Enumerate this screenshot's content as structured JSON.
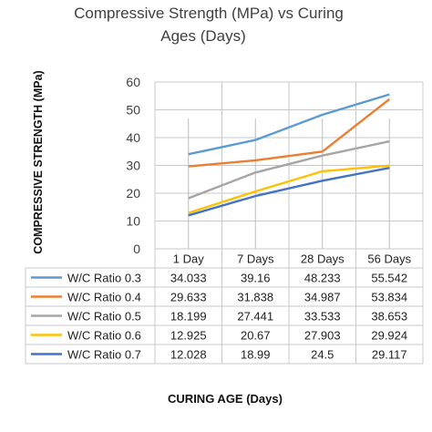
{
  "chart_data": {
    "type": "line",
    "title": "Compressive  Strength (MPa) vs Curing Ages (Days)",
    "title_lines": [
      "Compressive  Strength (MPa) vs Curing",
      "Ages (Days)"
    ],
    "xlabel": "CURING AGE (Days)",
    "ylabel": "COMPRESSIVE STRENGTH (MPa)",
    "categories": [
      "1 Day",
      "7 Days",
      "28 Days",
      "56 Days"
    ],
    "ylim": [
      0,
      60
    ],
    "yticks": [
      0,
      10,
      20,
      30,
      40,
      50,
      60
    ],
    "yticks_labels": [
      "0",
      "10",
      "20",
      "30",
      "40",
      "50",
      "60"
    ],
    "grid": true,
    "legend": "data-table",
    "series": [
      {
        "name": "W/C Ratio 0.3",
        "color": "#5B9BD5",
        "values": [
          34.033,
          39.16,
          48.233,
          55.542
        ],
        "labels": [
          "34.033",
          "39.16",
          "48.233",
          "55.542"
        ]
      },
      {
        "name": "W/C Ratio 0.4",
        "color": "#ED7D31",
        "values": [
          29.633,
          31.838,
          34.987,
          53.834
        ],
        "labels": [
          "29.633",
          "31.838",
          "34.987",
          "53.834"
        ]
      },
      {
        "name": "W/C Ratio 0.5",
        "color": "#A5A5A5",
        "values": [
          18.199,
          27.441,
          33.533,
          38.653
        ],
        "labels": [
          "18.199",
          "27.441",
          "33.533",
          "38.653"
        ]
      },
      {
        "name": "W/C Ratio 0.6",
        "color": "#FFC000",
        "values": [
          12.925,
          20.67,
          27.903,
          29.924
        ],
        "labels": [
          "12.925",
          "20.67",
          "27.903",
          "29.924"
        ]
      },
      {
        "name": "W/C Ratio 0.7",
        "color": "#4472C4",
        "values": [
          12.028,
          18.99,
          24.5,
          29.117
        ],
        "labels": [
          "12.028",
          "18.99",
          "24.5",
          "29.117"
        ]
      }
    ]
  }
}
